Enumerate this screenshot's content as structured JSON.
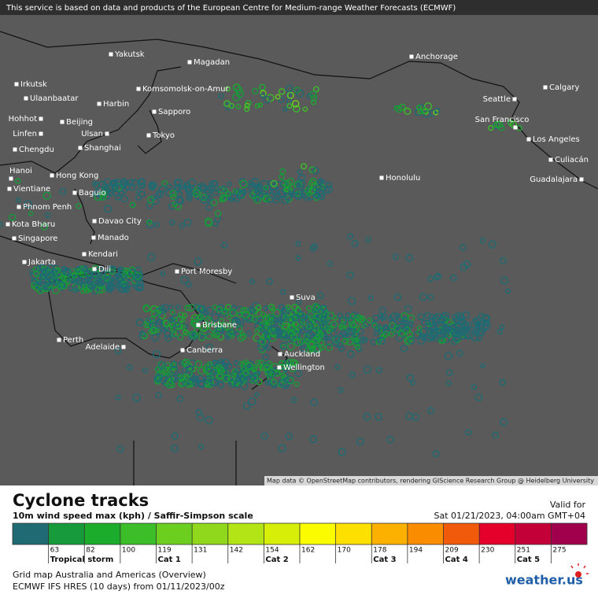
{
  "notice": "This service is based on data and products of the European Centre for Medium-range Weather Forecasts (ECMWF)",
  "map": {
    "attribution": "Map data © OpenStreetMap contributors, rendering GIScience Research Group @ Heidelberg University",
    "cities": [
      "Yakutsk",
      "Magadan",
      "Anchorage",
      "Irkutsk",
      "Ulaanbaatar",
      "Harbin",
      "Komsomolsk-on-Amur",
      "Calgary",
      "Seattle",
      "Sapporo",
      "Hohhot",
      "Beijing",
      "Linfen",
      "Ulsan",
      "Tokyo",
      "San Francisco",
      "Los Angeles",
      "Chengdu",
      "Shanghai",
      "Culiacán",
      "Hanoi",
      "Hong Kong",
      "Honolulu",
      "Guadalajara",
      "Vientiane",
      "Baguio",
      "Phnom Penh",
      "Davao City",
      "Kota Bharu",
      "Manado",
      "Singapore",
      "Kendari",
      "Jakarta",
      "Dili",
      "Port Moresby",
      "Suva",
      "Brisbane",
      "Perth",
      "Adelaide",
      "Canberra",
      "Auckland",
      "Wellington"
    ]
  },
  "legend": {
    "title": "Cyclone tracks",
    "subtitle": "10m wind speed max (kph) / Saffir-Simpson scale",
    "valid_label": "Valid for",
    "valid_time": "Sat 01/21/2023, 04:00am GMT+04",
    "thresholds": [
      63,
      82,
      100,
      119,
      131,
      142,
      154,
      162,
      170,
      178,
      194,
      209,
      230,
      251,
      275
    ],
    "colors": [
      "#1e6b73",
      "#179a3a",
      "#1cac2c",
      "#3cbe28",
      "#6cce1e",
      "#8fd81c",
      "#b2e416",
      "#d6ee08",
      "#fcfc00",
      "#fde000",
      "#fcb000",
      "#fa8c00",
      "#f05a0a",
      "#e4002a",
      "#c40038",
      "#a0004c",
      "#7c1090"
    ],
    "categories": [
      "Tropical storm",
      "Cat 1",
      "Cat 2",
      "Cat 3",
      "Cat 4",
      "Cat 5"
    ]
  },
  "footer": {
    "grid": "Grid map Australia and Americas (Overview)",
    "model": "ECMWF IFS HRES (10 days) from  01/11/2023/00z",
    "logo": "weather.us"
  }
}
